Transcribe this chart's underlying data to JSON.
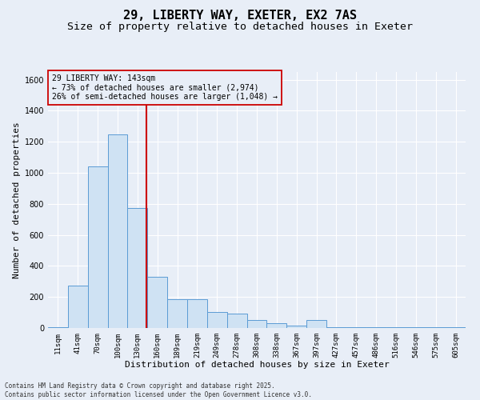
{
  "title_line1": "29, LIBERTY WAY, EXETER, EX2 7AS",
  "title_line2": "Size of property relative to detached houses in Exeter",
  "xlabel": "Distribution of detached houses by size in Exeter",
  "ylabel": "Number of detached properties",
  "categories": [
    "11sqm",
    "41sqm",
    "70sqm",
    "100sqm",
    "130sqm",
    "160sqm",
    "189sqm",
    "219sqm",
    "249sqm",
    "278sqm",
    "308sqm",
    "338sqm",
    "367sqm",
    "397sqm",
    "427sqm",
    "457sqm",
    "486sqm",
    "516sqm",
    "546sqm",
    "575sqm",
    "605sqm"
  ],
  "values": [
    3,
    275,
    1040,
    1250,
    775,
    330,
    185,
    185,
    105,
    95,
    50,
    30,
    15,
    50,
    3,
    3,
    3,
    3,
    3,
    3,
    3
  ],
  "bar_color": "#cfe2f3",
  "bar_edge_color": "#5b9bd5",
  "vline_color": "#cc0000",
  "vline_pos": 4.43,
  "annotation_text": "29 LIBERTY WAY: 143sqm\n← 73% of detached houses are smaller (2,974)\n26% of semi-detached houses are larger (1,048) →",
  "annotation_box_color": "#cc0000",
  "background_color": "#e8eef7",
  "ylim": [
    0,
    1650
  ],
  "yticks": [
    0,
    200,
    400,
    600,
    800,
    1000,
    1200,
    1400,
    1600
  ],
  "footer_text": "Contains HM Land Registry data © Crown copyright and database right 2025.\nContains public sector information licensed under the Open Government Licence v3.0.",
  "grid_color": "#ffffff",
  "title_fontsize": 11,
  "subtitle_fontsize": 9.5,
  "tick_fontsize": 6.5,
  "label_fontsize": 8,
  "annot_fontsize": 7,
  "footer_fontsize": 5.5
}
